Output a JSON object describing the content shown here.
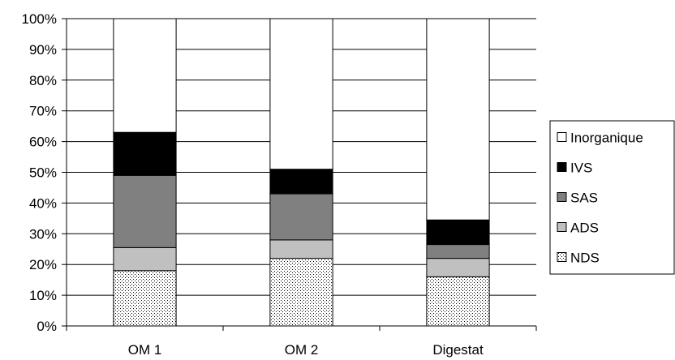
{
  "chart_data": {
    "type": "bar",
    "stacked": true,
    "percent_stacked": true,
    "categories": [
      "OM 1",
      "OM 2",
      "Digestat"
    ],
    "series": [
      {
        "name": "NDS",
        "values": [
          18,
          22,
          16
        ],
        "pattern": "dots",
        "color": "#ffffff"
      },
      {
        "name": "ADS",
        "values": [
          7.5,
          6,
          6
        ],
        "color": "#c0c0c0"
      },
      {
        "name": "SAS",
        "values": [
          23.5,
          15,
          4.5
        ],
        "color": "#808080"
      },
      {
        "name": "IVS",
        "values": [
          14,
          8,
          8
        ],
        "color": "#000000"
      },
      {
        "name": "Inorganique",
        "values": [
          37,
          49,
          65.5
        ],
        "color": "#ffffff"
      }
    ],
    "ylim": [
      0,
      100
    ],
    "y_ticks": [
      "0%",
      "10%",
      "20%",
      "30%",
      "40%",
      "50%",
      "60%",
      "70%",
      "80%",
      "90%",
      "100%"
    ],
    "grid": true,
    "legend_position": "right",
    "legend_order": [
      "Inorganique",
      "IVS",
      "SAS",
      "ADS",
      "NDS"
    ],
    "title": "",
    "xlabel": "",
    "ylabel": ""
  }
}
